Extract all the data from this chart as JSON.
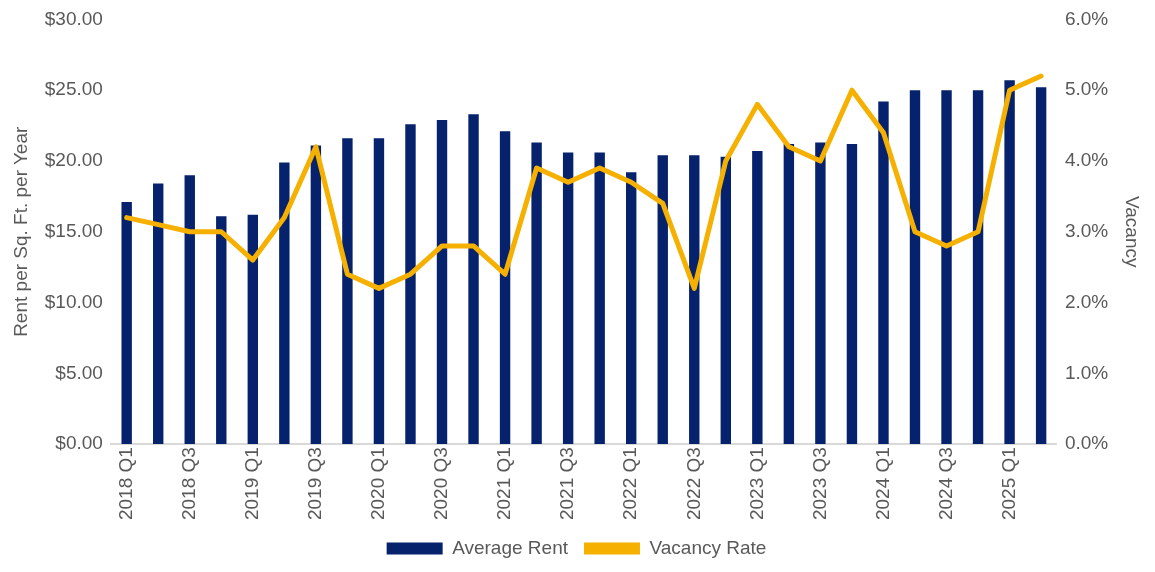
{
  "chart_data": {
    "type": "bar",
    "ylabel": "Rent per Sq. Ft. per Year",
    "y2label": "Vacancy",
    "categories": [
      "2018 Q1",
      null,
      "2018 Q3",
      null,
      "2019 Q1",
      null,
      "2019 Q3",
      null,
      "2020 Q1",
      null,
      "2020 Q3",
      null,
      "2021 Q1",
      null,
      "2021 Q3",
      null,
      "2022 Q1",
      null,
      "2022 Q3",
      null,
      "2023 Q1",
      null,
      "2023 Q3",
      null,
      "2024 Q1",
      null,
      "2024 Q3",
      null,
      "2025 Q1",
      null
    ],
    "series": [
      {
        "name": "Average Rent",
        "color": "#06226c",
        "values": [
          17.1,
          18.4,
          19.0,
          16.1,
          16.2,
          19.9,
          21.1,
          21.6,
          21.6,
          22.6,
          22.9,
          23.3,
          22.1,
          21.3,
          20.6,
          20.6,
          19.2,
          20.4,
          20.4,
          20.3,
          20.7,
          21.2,
          21.3,
          21.2,
          24.2,
          25.0,
          25.0,
          25.0,
          25.7,
          25.2
        ]
      },
      {
        "name": "Vacancy Rate",
        "type": "line",
        "axis": "y2",
        "color": "#f5b000",
        "values": [
          3.2,
          3.1,
          3.0,
          3.0,
          2.6,
          3.2,
          4.2,
          2.4,
          2.2,
          2.4,
          2.8,
          2.8,
          2.4,
          3.9,
          3.7,
          3.9,
          3.7,
          3.4,
          2.2,
          4.0,
          4.8,
          4.2,
          4.0,
          5.0,
          4.4,
          3.0,
          2.8,
          3.0,
          5.0,
          5.2
        ]
      }
    ],
    "ylim": [
      0,
      30
    ],
    "yticks": [
      {
        "value": 0,
        "label": "$0.00"
      },
      {
        "value": 5,
        "label": "$5.00"
      },
      {
        "value": 10,
        "label": "$10.00"
      },
      {
        "value": 15,
        "label": "$15.00"
      },
      {
        "value": 20,
        "label": "$20.00"
      },
      {
        "value": 25,
        "label": "$25.00"
      },
      {
        "value": 30,
        "label": "$30.00"
      }
    ],
    "y2lim": [
      0,
      6
    ],
    "y2ticks": [
      {
        "value": 0,
        "label": "0.0%"
      },
      {
        "value": 1,
        "label": "1.0%"
      },
      {
        "value": 2,
        "label": "2.0%"
      },
      {
        "value": 3,
        "label": "3.0%"
      },
      {
        "value": 4,
        "label": "4.0%"
      },
      {
        "value": 5,
        "label": "5.0%"
      },
      {
        "value": 6,
        "label": "6.0%"
      }
    ],
    "grid": false,
    "legend": "bottom",
    "marker": "none",
    "line_style": "solid"
  }
}
